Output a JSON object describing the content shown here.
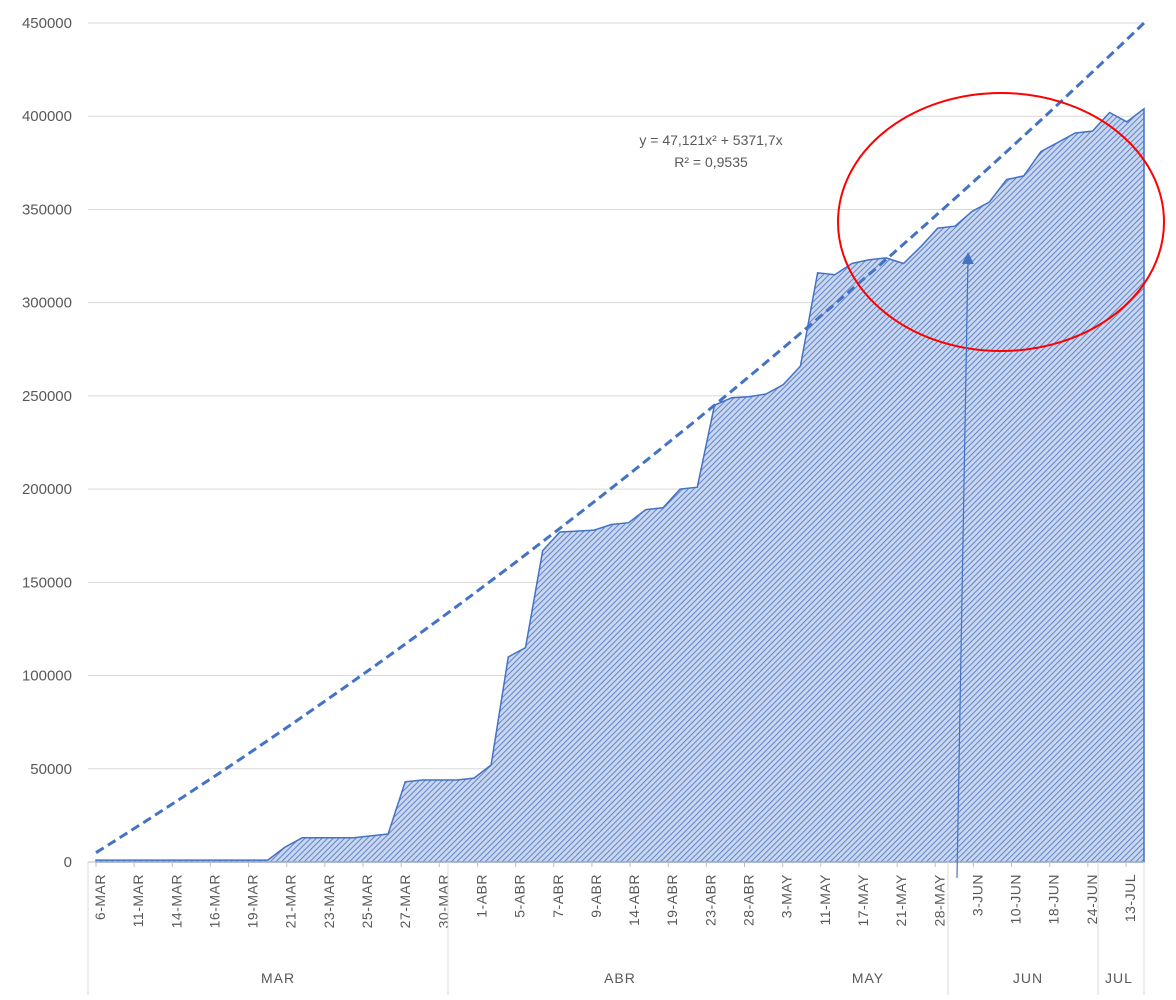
{
  "chart_data": {
    "type": "area",
    "title": "",
    "xlabel": "",
    "ylabel": "",
    "ylim": [
      0,
      450000
    ],
    "yticks": [
      0,
      50000,
      100000,
      150000,
      200000,
      250000,
      300000,
      350000,
      400000,
      450000
    ],
    "grid": true,
    "x_tick_labels": [
      "6-MAR",
      "11-MAR",
      "14-MAR",
      "16-MAR",
      "19-MAR",
      "21-MAR",
      "23-MAR",
      "25-MAR",
      "27-MAR",
      "30-MAR",
      "1-ABR",
      "5-ABR",
      "7-ABR",
      "9-ABR",
      "14-ABR",
      "19-ABR",
      "23-ABR",
      "28-ABR",
      "3-MAY",
      "11-MAY",
      "17-MAY",
      "21-MAY",
      "28-MAY",
      "3-JUN",
      "10-JUN",
      "18-JUN",
      "24-JUN",
      "13-JUL"
    ],
    "month_labels": [
      "MAR",
      "ABR",
      "MAY",
      "JUN",
      "JUL"
    ],
    "series": [
      {
        "type": "area",
        "color": "#4472c4",
        "values": [
          1000,
          1000,
          1000,
          1000,
          1000,
          1000,
          1000,
          1000,
          1000,
          1000,
          1000,
          8000,
          13000,
          13000,
          13000,
          13000,
          14000,
          15000,
          43000,
          44000,
          44000,
          44000,
          45000,
          52000,
          110000,
          115000,
          167000,
          177000,
          177500,
          178000,
          181000,
          182000,
          189000,
          190000,
          200000,
          201000,
          245000,
          249000,
          249500,
          251000,
          256000,
          266000,
          316000,
          315000,
          321000,
          323000,
          324000,
          321000,
          330000,
          340000,
          341000,
          349000,
          354000,
          366000,
          368000,
          381000,
          386000,
          391000,
          392000,
          402000,
          397000,
          404000
        ]
      }
    ],
    "trendline": {
      "type": "polynomial",
      "color": "#4472c4",
      "dash": true,
      "equation": "y = 47,121x² + 5371,7x",
      "r2": "R² = 0,9535",
      "start": 5000,
      "end": 451000
    },
    "annotations": [
      {
        "type": "ellipse",
        "color": "#ff0000",
        "description_point": "around 28-MAY to 13-JUL, 320000–400000"
      },
      {
        "type": "arrow",
        "color": "#4472c4"
      }
    ]
  }
}
